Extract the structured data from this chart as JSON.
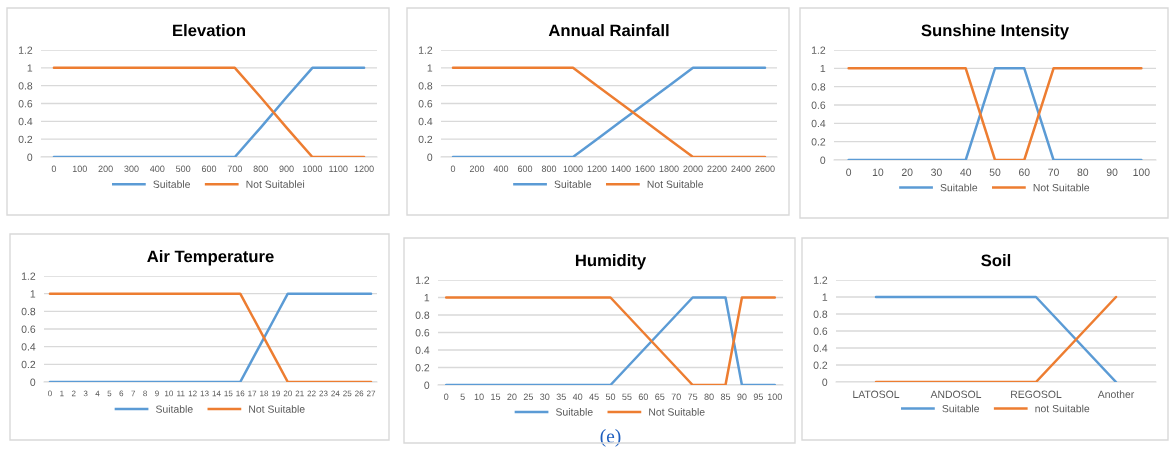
{
  "chart_data": [
    {
      "type": "line",
      "title": "Elevation",
      "categories": [
        "0",
        "100",
        "200",
        "300",
        "400",
        "500",
        "600",
        "700",
        "800",
        "900",
        "1000",
        "1100",
        "1200"
      ],
      "series": [
        {
          "name": "Suitable",
          "color": "#5b9bd5",
          "values": [
            0,
            0,
            0,
            0,
            0,
            0,
            0,
            0,
            0.33,
            0.67,
            1,
            1,
            1
          ]
        },
        {
          "name": "Not Suitablei",
          "color": "#ed7d31",
          "values": [
            1,
            1,
            1,
            1,
            1,
            1,
            1,
            1,
            0.67,
            0.33,
            0,
            0,
            0
          ]
        }
      ],
      "ylim": [
        0,
        1.2
      ],
      "yticks": [
        0,
        0.2,
        0.4,
        0.6,
        0.8,
        1,
        1.2
      ],
      "grid": "y",
      "legend": "bottom"
    },
    {
      "type": "line",
      "title": "Annual Rainfall",
      "categories": [
        "0",
        "200",
        "400",
        "600",
        "800",
        "1000",
        "1200",
        "1400",
        "1600",
        "1800",
        "2000",
        "2200",
        "2400",
        "2600"
      ],
      "series": [
        {
          "name": "Suitable",
          "color": "#5b9bd5",
          "values": [
            0,
            0,
            0,
            0,
            0,
            0,
            0.2,
            0.4,
            0.6,
            0.8,
            1,
            1,
            1,
            1
          ]
        },
        {
          "name": "Not Suitable",
          "color": "#ed7d31",
          "values": [
            1,
            1,
            1,
            1,
            1,
            1,
            0.8,
            0.6,
            0.4,
            0.2,
            0,
            0,
            0,
            0
          ]
        }
      ],
      "ylim": [
        0,
        1.2
      ],
      "yticks": [
        0,
        0.2,
        0.4,
        0.6,
        0.8,
        1,
        1.2
      ],
      "grid": "y",
      "legend": "bottom"
    },
    {
      "type": "line",
      "title": "Sunshine Intensity",
      "categories": [
        "0",
        "10",
        "20",
        "30",
        "40",
        "50",
        "60",
        "70",
        "80",
        "90",
        "100"
      ],
      "series": [
        {
          "name": "Suitable",
          "color": "#5b9bd5",
          "values": [
            0,
            0,
            0,
            0,
            0,
            1,
            1,
            0,
            0,
            0,
            0
          ]
        },
        {
          "name": "Not Suitable",
          "color": "#ed7d31",
          "values": [
            1,
            1,
            1,
            1,
            1,
            0,
            0,
            1,
            1,
            1,
            1
          ]
        }
      ],
      "ylim": [
        0,
        1.2
      ],
      "yticks": [
        0,
        0.2,
        0.4,
        0.6,
        0.8,
        1,
        1.2
      ],
      "grid": "y",
      "legend": "bottom"
    },
    {
      "type": "line",
      "title": "Air Temperature",
      "categories": [
        "0",
        "1",
        "2",
        "3",
        "4",
        "5",
        "6",
        "7",
        "8",
        "9",
        "10",
        "11",
        "12",
        "13",
        "14",
        "15",
        "16",
        "17",
        "18",
        "19",
        "20",
        "21",
        "22",
        "23",
        "24",
        "25",
        "26",
        "27"
      ],
      "series": [
        {
          "name": "Suitable",
          "color": "#5b9bd5",
          "values": [
            0,
            0,
            0,
            0,
            0,
            0,
            0,
            0,
            0,
            0,
            0,
            0,
            0,
            0,
            0,
            0,
            0,
            0.25,
            0.5,
            0.75,
            1,
            1,
            1,
            1,
            1,
            1,
            1,
            1
          ]
        },
        {
          "name": "Not Suitable",
          "color": "#ed7d31",
          "values": [
            1,
            1,
            1,
            1,
            1,
            1,
            1,
            1,
            1,
            1,
            1,
            1,
            1,
            1,
            1,
            1,
            1,
            0.75,
            0.5,
            0.25,
            0,
            0,
            0,
            0,
            0,
            0,
            0,
            0
          ]
        }
      ],
      "ylim": [
        0,
        1.2
      ],
      "yticks": [
        0,
        0.2,
        0.4,
        0.6,
        0.8,
        1,
        1.2
      ],
      "grid": "y",
      "legend": "bottom"
    },
    {
      "type": "line",
      "title": "Humidity",
      "categories": [
        "0",
        "5",
        "10",
        "15",
        "20",
        "25",
        "30",
        "35",
        "40",
        "45",
        "50",
        "55",
        "60",
        "65",
        "70",
        "75",
        "80",
        "85",
        "90",
        "95",
        "100"
      ],
      "series": [
        {
          "name": "Suitable",
          "color": "#5b9bd5",
          "values": [
            0,
            0,
            0,
            0,
            0,
            0,
            0,
            0,
            0,
            0,
            0,
            0.2,
            0.4,
            0.6,
            0.8,
            1,
            1,
            1,
            0,
            0,
            0
          ]
        },
        {
          "name": "Not Suitable",
          "color": "#ed7d31",
          "values": [
            1,
            1,
            1,
            1,
            1,
            1,
            1,
            1,
            1,
            1,
            1,
            0.8,
            0.6,
            0.4,
            0.2,
            0,
            0,
            0,
            1,
            1,
            1
          ]
        }
      ],
      "ylim": [
        0,
        1.2
      ],
      "yticks": [
        0,
        0.2,
        0.4,
        0.6,
        0.8,
        1,
        1.2
      ],
      "grid": "y",
      "legend": "bottom",
      "annotations": [
        "(e)"
      ]
    },
    {
      "type": "line",
      "title": "Soil",
      "categories": [
        "LATOSOL",
        "ANDOSOL",
        "REGOSOL",
        "Another"
      ],
      "series": [
        {
          "name": "Suitable",
          "color": "#5b9bd5",
          "values": [
            1,
            1,
            1,
            0
          ]
        },
        {
          "name": "not Suitable",
          "color": "#ed7d31",
          "values": [
            0,
            0,
            0,
            1
          ]
        }
      ],
      "ylim": [
        0,
        1.2
      ],
      "yticks": [
        0,
        0.2,
        0.4,
        0.6,
        0.8,
        1,
        1.2
      ],
      "grid": "y",
      "legend": "bottom"
    }
  ]
}
